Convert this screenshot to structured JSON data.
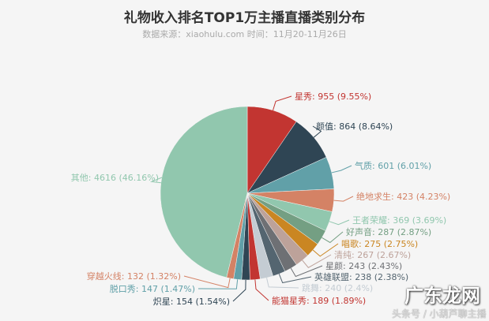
{
  "chart_data": {
    "type": "pie",
    "title": "礼物收入排名TOP1万主播直播类别分布",
    "subtitle": "数据来源：xiaohulu.com 时间：11月20-11月26日",
    "slices": [
      {
        "name": "星秀",
        "value": 955,
        "percent": "9.55%",
        "color": "#c23531"
      },
      {
        "name": "颜值",
        "value": 864,
        "percent": "8.64%",
        "color": "#2f4554"
      },
      {
        "name": "气质",
        "value": 601,
        "percent": "6.01%",
        "color": "#61a0a8"
      },
      {
        "name": "绝地求生",
        "value": 423,
        "percent": "4.23%",
        "color": "#d48265"
      },
      {
        "name": "王者荣耀",
        "value": 369,
        "percent": "3.69%",
        "color": "#91c7ae"
      },
      {
        "name": "好声音",
        "value": 287,
        "percent": "2.87%",
        "color": "#749f83"
      },
      {
        "name": "唱歌",
        "value": 275,
        "percent": "2.75%",
        "color": "#ca8622"
      },
      {
        "name": "清纯",
        "value": 267,
        "percent": "2.67%",
        "color": "#bda29a"
      },
      {
        "name": "星颜",
        "value": 243,
        "percent": "2.43%",
        "color": "#6e7074"
      },
      {
        "name": "英雄联盟",
        "value": 238,
        "percent": "2.38%",
        "color": "#546570"
      },
      {
        "name": "跳舞",
        "value": 240,
        "percent": "2.4%",
        "color": "#c4ccd3"
      },
      {
        "name": "能猫星秀",
        "value": 189,
        "percent": "1.89%",
        "color": "#c23531"
      },
      {
        "name": "炽星",
        "value": 154,
        "percent": "1.54%",
        "color": "#2f4554"
      },
      {
        "name": "脱口秀",
        "value": 147,
        "percent": "1.47%",
        "color": "#61a0a8"
      },
      {
        "name": "穿越火线",
        "value": 132,
        "percent": "1.32%",
        "color": "#d48265"
      },
      {
        "name": "其他",
        "value": 4616,
        "percent": "46.16%",
        "color": "#91c7ae"
      }
    ]
  },
  "watermark": {
    "logo": "广东龙网",
    "credit": "头条号 / 小葫芦聊主播"
  }
}
